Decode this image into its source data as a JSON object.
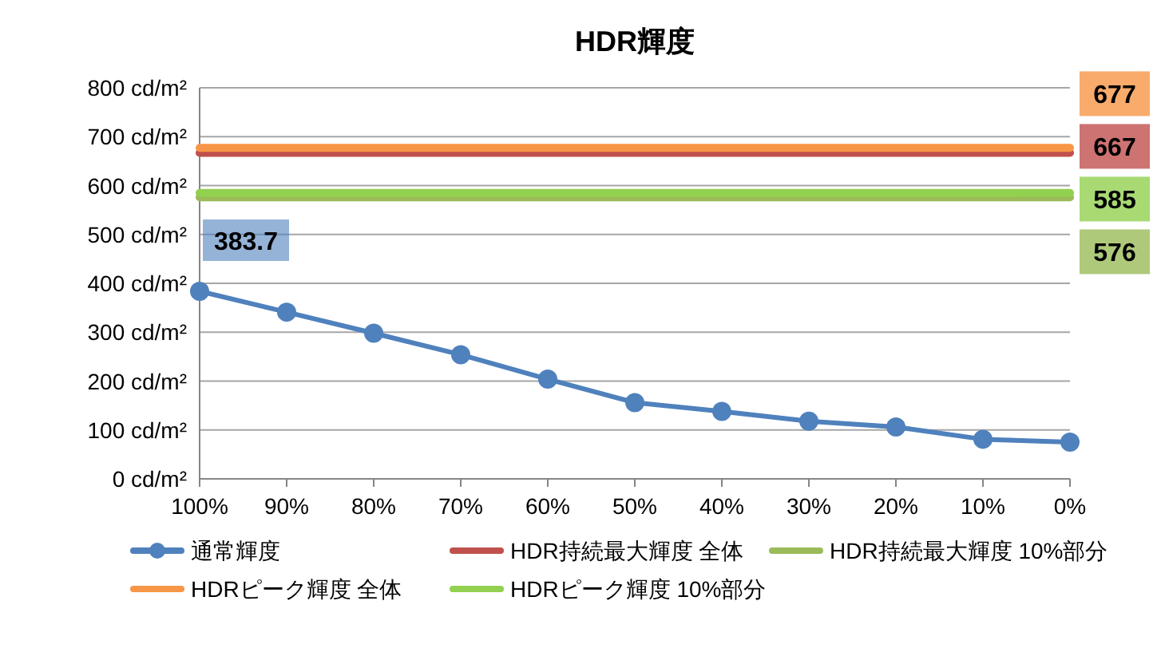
{
  "chart_data": {
    "type": "line",
    "title": "HDR輝度",
    "categories": [
      "100%",
      "90%",
      "80%",
      "70%",
      "60%",
      "50%",
      "40%",
      "30%",
      "20%",
      "10%",
      "0%"
    ],
    "ylim": [
      0,
      800
    ],
    "yticks": [
      {
        "value": 0,
        "label": "0 cd/m²"
      },
      {
        "value": 100,
        "label": "100 cd/m²"
      },
      {
        "value": 200,
        "label": "200 cd/m²"
      },
      {
        "value": 300,
        "label": "300 cd/m²"
      },
      {
        "value": 400,
        "label": "400 cd/m²"
      },
      {
        "value": 500,
        "label": "500 cd/m²"
      },
      {
        "value": 600,
        "label": "600 cd/m²"
      },
      {
        "value": 700,
        "label": "700 cd/m²"
      },
      {
        "value": 800,
        "label": "800 cd/m²"
      }
    ],
    "grid": "y",
    "legend": "bottom",
    "series": [
      {
        "name": "通常輝度",
        "type": "line",
        "color": "#4f81bd",
        "marker": "circle",
        "values": [
          383.7,
          341,
          298,
          254,
          204,
          156,
          138,
          118,
          106,
          81,
          75
        ],
        "value_labels": [
          "383.7",
          null,
          null,
          null,
          null,
          null,
          null,
          null,
          null,
          null,
          null
        ]
      },
      {
        "name": "HDR持続最大輝度 全体",
        "type": "line",
        "color": "#c0504d",
        "marker": "none",
        "values": [
          667,
          667,
          667,
          667,
          667,
          667,
          667,
          667,
          667,
          667,
          667
        ],
        "value_labels": [
          null,
          null,
          null,
          null,
          null,
          null,
          null,
          null,
          null,
          null,
          "667"
        ]
      },
      {
        "name": "HDR持続最大輝度 10%部分",
        "type": "line",
        "color": "#9bbb59",
        "marker": "none",
        "values": [
          576,
          576,
          576,
          576,
          576,
          576,
          576,
          576,
          576,
          576,
          576
        ],
        "value_labels": [
          null,
          null,
          null,
          null,
          null,
          null,
          null,
          null,
          null,
          null,
          "576"
        ]
      },
      {
        "name": "HDRピーク輝度 全体",
        "type": "line",
        "color": "#f79646",
        "marker": "none",
        "values": [
          677,
          677,
          677,
          677,
          677,
          677,
          677,
          677,
          677,
          677,
          677
        ],
        "value_labels": [
          null,
          null,
          null,
          null,
          null,
          null,
          null,
          null,
          null,
          null,
          "677"
        ]
      },
      {
        "name": "HDRピーク輝度 10%部分",
        "type": "line",
        "color": "#92d050",
        "marker": "none",
        "values": [
          585,
          585,
          585,
          585,
          585,
          585,
          585,
          585,
          585,
          585,
          585
        ],
        "value_labels": [
          null,
          null,
          null,
          null,
          null,
          null,
          null,
          null,
          null,
          null,
          "585"
        ]
      }
    ]
  }
}
